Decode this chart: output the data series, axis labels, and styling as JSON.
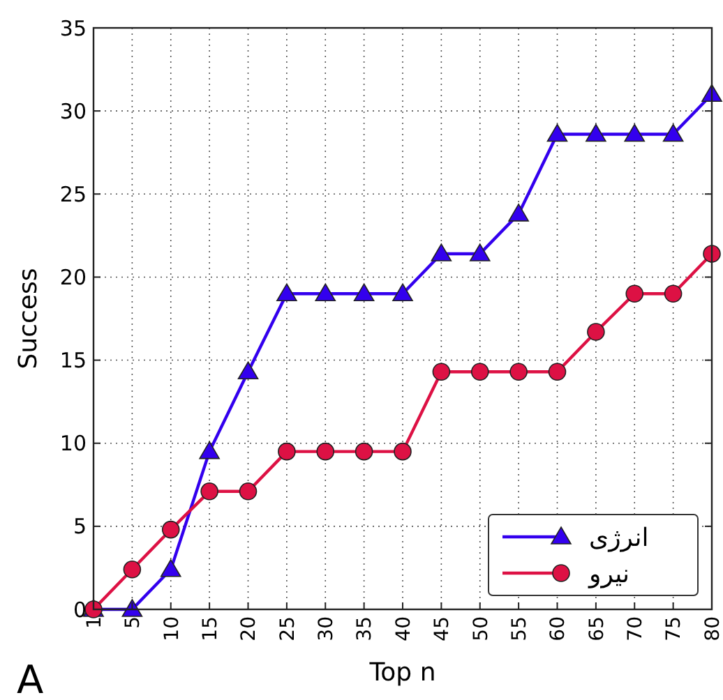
{
  "chart_data": {
    "type": "line",
    "xlabel": "Top n",
    "ylabel": "Success",
    "categories": [
      "1",
      "5",
      "10",
      "15",
      "20",
      "25",
      "30",
      "35",
      "40",
      "45",
      "50",
      "55",
      "60",
      "65",
      "70",
      "75",
      "80"
    ],
    "series": [
      {
        "name": "انرژی",
        "color": "#3300ee",
        "marker": "triangle",
        "values": [
          0,
          0,
          2.4,
          9.5,
          14.3,
          19.0,
          19.0,
          19.0,
          19.0,
          21.4,
          21.4,
          23.8,
          28.6,
          28.6,
          28.6,
          28.6,
          31.0
        ]
      },
      {
        "name": "نیرو",
        "color": "#dd1144",
        "marker": "circle",
        "values": [
          0,
          2.4,
          4.8,
          7.1,
          7.1,
          9.5,
          9.5,
          9.5,
          9.5,
          14.3,
          14.3,
          14.3,
          14.3,
          16.7,
          19.0,
          19.0,
          21.4
        ]
      }
    ],
    "ylim": [
      0,
      35
    ],
    "yticks": [
      0,
      5,
      10,
      15,
      20,
      25,
      30,
      35
    ],
    "grid": true,
    "legend": "bottom right",
    "line_style": "solid",
    "annotations": [
      "A"
    ]
  }
}
